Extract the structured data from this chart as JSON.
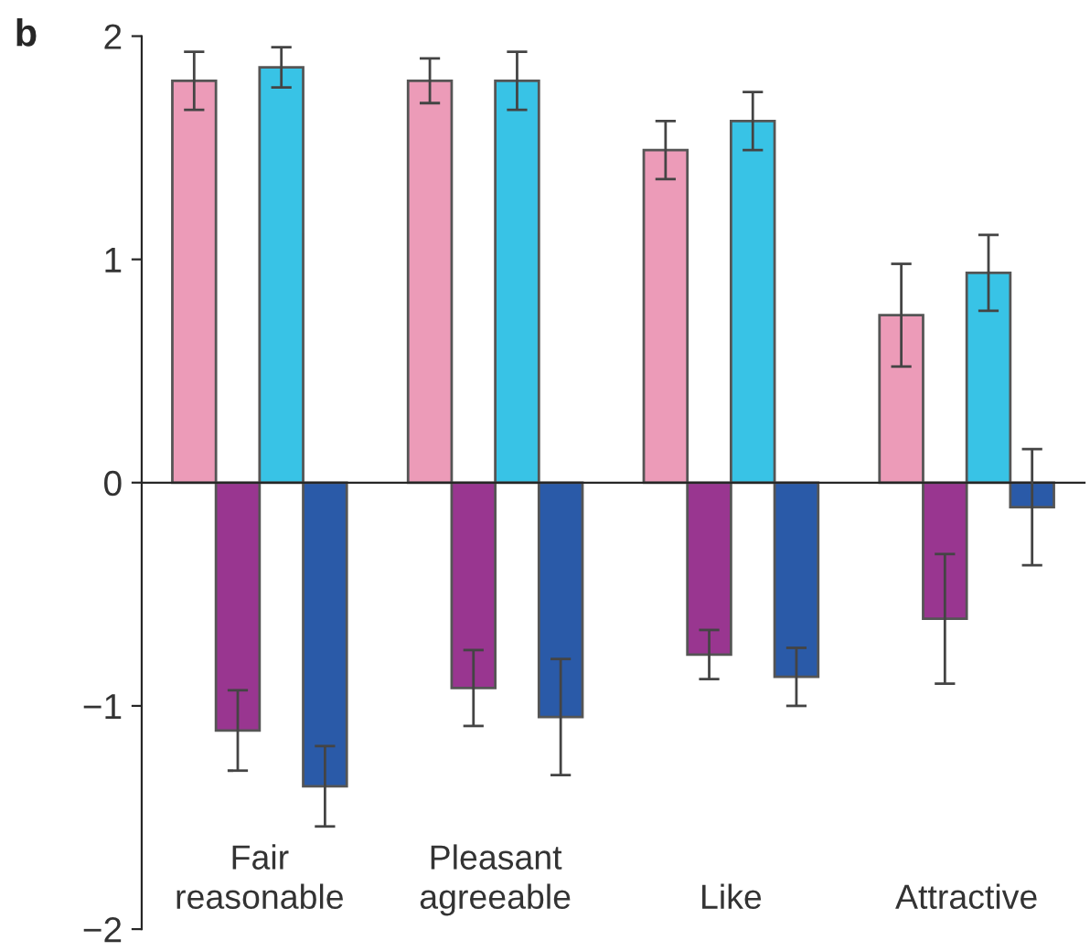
{
  "chart_data": {
    "type": "bar",
    "title": "b",
    "categories": [
      "Fair\nreasonable",
      "Pleasant\nagreeable",
      "Like",
      "Attractive"
    ],
    "series": [
      {
        "color": "#ec9bb8",
        "values": [
          1.8,
          1.8,
          1.49,
          0.75
        ],
        "errors": [
          0.13,
          0.1,
          0.13,
          0.23
        ]
      },
      {
        "color": "#993690",
        "values": [
          -1.11,
          -0.92,
          -0.77,
          -0.61
        ],
        "errors": [
          0.18,
          0.17,
          0.11,
          0.29
        ]
      },
      {
        "color": "#38c3e6",
        "values": [
          1.86,
          1.8,
          1.62,
          0.94
        ],
        "errors": [
          0.09,
          0.13,
          0.13,
          0.17
        ]
      },
      {
        "color": "#2a5aa8",
        "values": [
          -1.36,
          -1.05,
          -0.87,
          -0.11
        ],
        "errors": [
          0.18,
          0.26,
          0.13,
          0.26
        ]
      }
    ],
    "ylim": [
      -2,
      2
    ],
    "yticks": [
      {
        "value": -2,
        "label": "−2"
      },
      {
        "value": -1,
        "label": "−1"
      },
      0,
      1,
      2
    ]
  }
}
